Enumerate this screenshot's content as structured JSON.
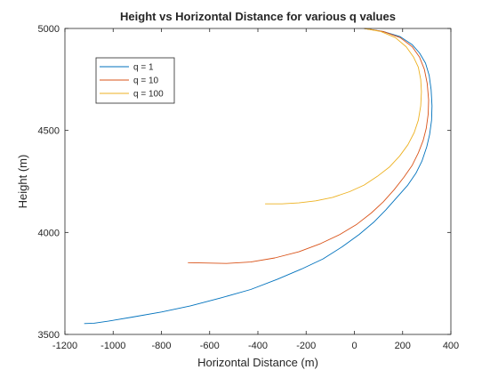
{
  "chart_data": {
    "type": "line",
    "title": "Height vs Horizontal Distance for various q values",
    "xlabel": "Horizontal Distance (m)",
    "ylabel": "Height (m)",
    "xlim": [
      -1200,
      400
    ],
    "ylim": [
      3500,
      5000
    ],
    "xticks": [
      -1200,
      -1000,
      -800,
      -600,
      -400,
      -200,
      0,
      200,
      400
    ],
    "yticks": [
      3500,
      4000,
      4500,
      5000
    ],
    "xtick_labels": [
      "-1200",
      "-1000",
      "-800",
      "-600",
      "-400",
      "-200",
      "0",
      "200",
      "400"
    ],
    "ytick_labels": [
      "3500",
      "4000",
      "4500",
      "5000"
    ],
    "grid": false,
    "legend_position": "top-left",
    "series": [
      {
        "name": "q = 1",
        "color": "#0072BD",
        "x": [
          40,
          120,
          190,
          240,
          270,
          295,
          310,
          318,
          322,
          320,
          312,
          300,
          280,
          255,
          220,
          175,
          130,
          80,
          20,
          -50,
          -130,
          -220,
          -320,
          -430,
          -550,
          -680,
          -800,
          -920,
          -1020,
          -1080,
          -1120
        ],
        "y": [
          5000,
          4985,
          4960,
          4920,
          4880,
          4830,
          4770,
          4700,
          4620,
          4550,
          4480,
          4420,
          4350,
          4290,
          4230,
          4170,
          4110,
          4050,
          3990,
          3930,
          3870,
          3820,
          3770,
          3720,
          3680,
          3640,
          3610,
          3585,
          3565,
          3555,
          3553
        ]
      },
      {
        "name": "q = 10",
        "color": "#D95319",
        "x": [
          40,
          120,
          190,
          240,
          270,
          290,
          302,
          308,
          306,
          298,
          285,
          265,
          240,
          205,
          165,
          120,
          70,
          10,
          -60,
          -140,
          -230,
          -330,
          -430,
          -530,
          -620,
          -690
        ],
        "y": [
          5000,
          4985,
          4955,
          4910,
          4860,
          4800,
          4730,
          4650,
          4580,
          4510,
          4450,
          4390,
          4330,
          4270,
          4210,
          4150,
          4095,
          4040,
          3990,
          3945,
          3905,
          3875,
          3855,
          3848,
          3850,
          3852
        ]
      },
      {
        "name": "q = 100",
        "color": "#EDB120",
        "x": [
          40,
          110,
          170,
          215,
          245,
          265,
          275,
          278,
          275,
          265,
          248,
          222,
          188,
          145,
          95,
          40,
          -20,
          -90,
          -160,
          -230,
          -300,
          -370
        ],
        "y": [
          5000,
          4985,
          4955,
          4910,
          4860,
          4810,
          4750,
          4690,
          4620,
          4550,
          4490,
          4430,
          4375,
          4320,
          4275,
          4232,
          4200,
          4172,
          4155,
          4145,
          4140,
          4140
        ]
      }
    ]
  }
}
